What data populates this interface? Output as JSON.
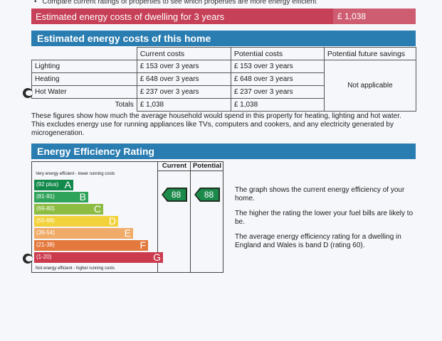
{
  "top_bullet": "Compare current ratings of properties to see which properties are more energy efficient",
  "total_costs": {
    "label": "Estimated energy costs of dwelling for 3 years",
    "value": "£ 1,038"
  },
  "costs_section": {
    "title": "Estimated energy costs of this home",
    "columns": [
      "Current costs",
      "Potential costs",
      "Potential future savings"
    ],
    "rows": [
      {
        "name": "Lighting",
        "current": "£ 153 over 3 years",
        "potential": "£ 153 over 3 years"
      },
      {
        "name": "Heating",
        "current": "£ 648 over 3 years",
        "potential": "£ 648 over 3 years"
      },
      {
        "name": "Hot Water",
        "current": "£ 237 over 3 years",
        "potential": "£ 237 over 3 years"
      }
    ],
    "savings_note": "Not applicable",
    "totals": {
      "label": "Totals",
      "current": "£ 1,038",
      "potential": "£ 1,038"
    },
    "note": "These figures show how much the average household would spend in this property for heating, lighting and hot water. This excludes energy use for running appliances like TVs, computers and cookers, and any electricity generated by microgeneration."
  },
  "rating_section": {
    "title": "Energy Efficiency Rating",
    "col_current": "Current",
    "col_potential": "Potential",
    "top_label": "Very energy efficient - lower running costs",
    "bottom_label": "Not energy efficient - higher running costs",
    "bands": [
      {
        "range": "(92 plus)",
        "letter": "A",
        "color": "#138a4b"
      },
      {
        "range": "(81-91)",
        "letter": "B",
        "color": "#2fa35a"
      },
      {
        "range": "(69-80)",
        "letter": "C",
        "color": "#8cbc42"
      },
      {
        "range": "(55-68)",
        "letter": "D",
        "color": "#f2d23a"
      },
      {
        "range": "(39-54)",
        "letter": "E",
        "color": "#f0ab68"
      },
      {
        "range": "(21-38)",
        "letter": "F",
        "color": "#e4793d"
      },
      {
        "range": "(1-20)",
        "letter": "G",
        "color": "#cc3a4e"
      }
    ],
    "current_rating": "88",
    "potential_rating": "88",
    "rating_color": "#1b8a4b",
    "description": [
      "The graph shows the current energy efficiency of your home.",
      "The higher the rating the lower your fuel bills are likely to be.",
      "The average energy efficiency rating for a dwelling in England and Wales is band D (rating 60)."
    ]
  }
}
